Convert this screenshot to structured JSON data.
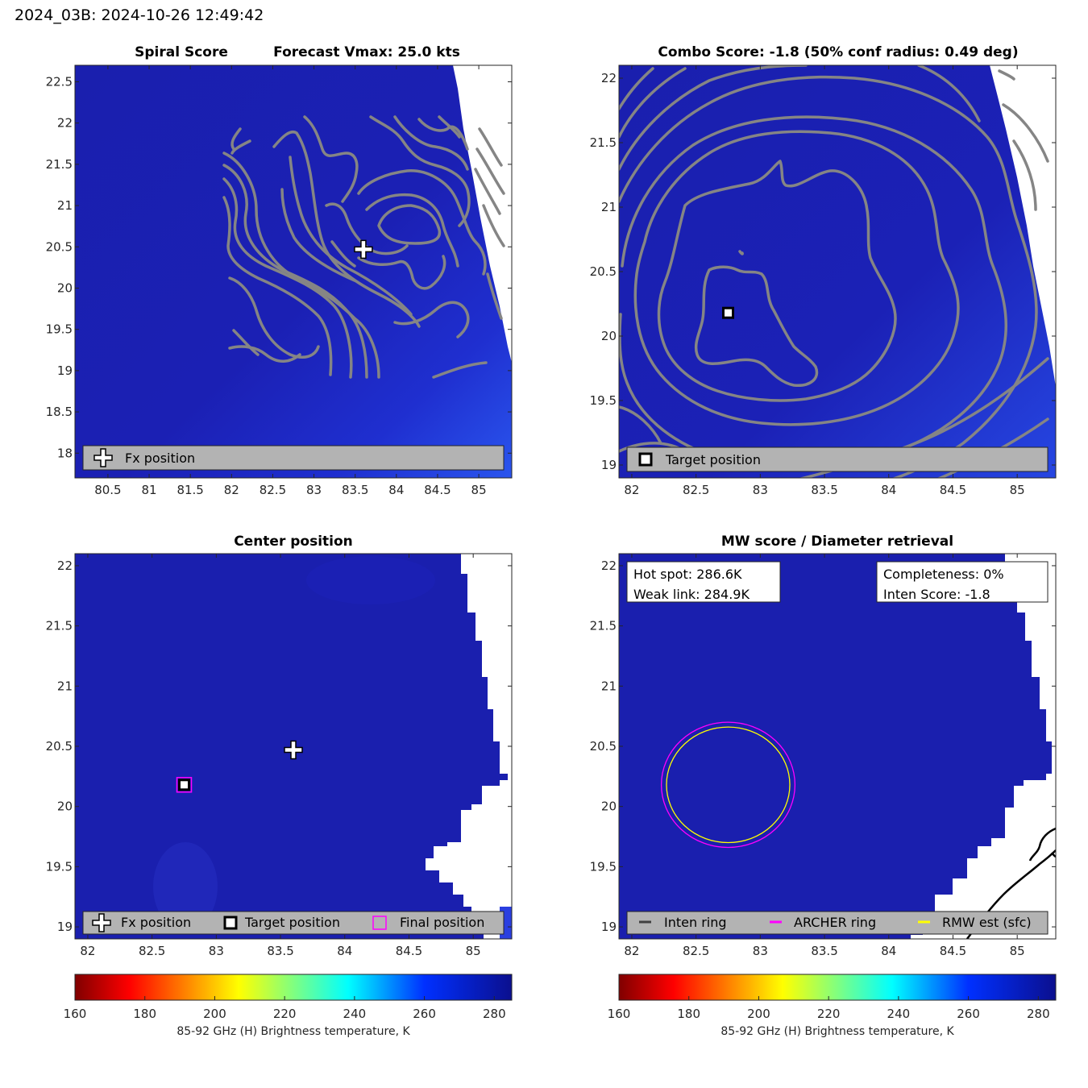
{
  "figure_title": "2024_03B: 2024-10-26 12:49:42",
  "colors": {
    "background_blue": "#1a1fb0",
    "contour": "#858585",
    "legend_bg": "#b3b3b3",
    "magenta": "#ff00ff",
    "yellow": "#ffff00",
    "inten_ring": "#404040"
  },
  "colorbar": {
    "label": "85-92 GHz (H) Brightness temperature, K",
    "ticks": [
      "160",
      "180",
      "200",
      "220",
      "240",
      "260",
      "280"
    ],
    "range": [
      160,
      285
    ],
    "colormap": "jet-reversed"
  },
  "chart_data": [
    {
      "id": "spiral",
      "type": "map",
      "title": "Spiral Score",
      "title2": "Forecast Vmax: 25.0 kts",
      "xlim": [
        80.1,
        85.4
      ],
      "ylim": [
        17.7,
        22.7
      ],
      "xticks": [
        80.5,
        81,
        81.5,
        82,
        82.5,
        83,
        83.5,
        84,
        84.5,
        85
      ],
      "xtick_labels": [
        "80.5",
        "81",
        "81.5",
        "82",
        "82.5",
        "83",
        "83.5",
        "84",
        "84.5",
        "85"
      ],
      "yticks": [
        18,
        18.5,
        19,
        19.5,
        20,
        20.5,
        21,
        21.5,
        22,
        22.5
      ],
      "ytick_labels": [
        "18",
        "18.5",
        "19",
        "19.5",
        "20",
        "20.5",
        "21",
        "21.5",
        "22",
        "22.5"
      ],
      "markers": [
        {
          "type": "fx",
          "lon": 83.6,
          "lat": 20.47
        }
      ],
      "legend": [
        "Fx position"
      ]
    },
    {
      "id": "combo",
      "type": "map",
      "title": "Combo Score: -1.8  (50% conf radius: 0.49 deg)",
      "xlim": [
        81.9,
        85.3
      ],
      "ylim": [
        18.9,
        22.1
      ],
      "xticks": [
        82,
        82.5,
        83,
        83.5,
        84,
        84.5,
        85
      ],
      "xtick_labels": [
        "82",
        "82.5",
        "83",
        "83.5",
        "84",
        "84.5",
        "85"
      ],
      "yticks": [
        19,
        19.5,
        20,
        20.5,
        21,
        21.5,
        22
      ],
      "ytick_labels": [
        "19",
        "19.5",
        "20",
        "20.5",
        "21",
        "21.5",
        "22"
      ],
      "markers": [
        {
          "type": "target",
          "lon": 82.75,
          "lat": 20.18
        }
      ],
      "legend": [
        "Target position"
      ]
    },
    {
      "id": "center",
      "type": "map",
      "title": "Center position",
      "xlim": [
        81.9,
        85.3
      ],
      "ylim": [
        18.9,
        22.1
      ],
      "xticks": [
        82,
        82.5,
        83,
        83.5,
        84,
        84.5,
        85
      ],
      "xtick_labels": [
        "82",
        "82.5",
        "83",
        "83.5",
        "84",
        "84.5",
        "85"
      ],
      "yticks": [
        19,
        19.5,
        20,
        20.5,
        21,
        21.5,
        22
      ],
      "ytick_labels": [
        "19",
        "19.5",
        "20",
        "20.5",
        "21",
        "21.5",
        "22"
      ],
      "markers": [
        {
          "type": "fx",
          "lon": 83.6,
          "lat": 20.47
        },
        {
          "type": "target",
          "lon": 82.75,
          "lat": 20.18
        },
        {
          "type": "final",
          "lon": 82.75,
          "lat": 20.18
        }
      ],
      "legend": [
        "Fx position",
        "Target position",
        "Final position"
      ]
    },
    {
      "id": "mw",
      "type": "map",
      "title": "MW score / Diameter retrieval",
      "xlim": [
        81.9,
        85.3
      ],
      "ylim": [
        18.9,
        22.1
      ],
      "xticks": [
        82,
        82.5,
        83,
        83.5,
        84,
        84.5,
        85
      ],
      "xtick_labels": [
        "82",
        "82.5",
        "83",
        "83.5",
        "84",
        "84.5",
        "85"
      ],
      "yticks": [
        19,
        19.5,
        20,
        20.5,
        21,
        21.5,
        22
      ],
      "ytick_labels": [
        "19",
        "19.5",
        "20",
        "20.5",
        "21",
        "21.5",
        "22"
      ],
      "info_left": [
        "Hot spot: 286.6K",
        "Weak link: 284.9K"
      ],
      "info_right": [
        "Completeness: 0%",
        "Inten Score: -1.8"
      ],
      "rings": [
        {
          "name": "ARCHER ring",
          "center": [
            82.75,
            20.18
          ],
          "radius": 0.52,
          "color": "#ff00ff"
        },
        {
          "name": "RMW est (sfc)",
          "center": [
            82.75,
            20.18
          ],
          "radius": 0.48,
          "color": "#ffff00"
        }
      ],
      "legend": [
        "Inten ring",
        "ARCHER ring",
        "RMW est (sfc)"
      ]
    }
  ]
}
